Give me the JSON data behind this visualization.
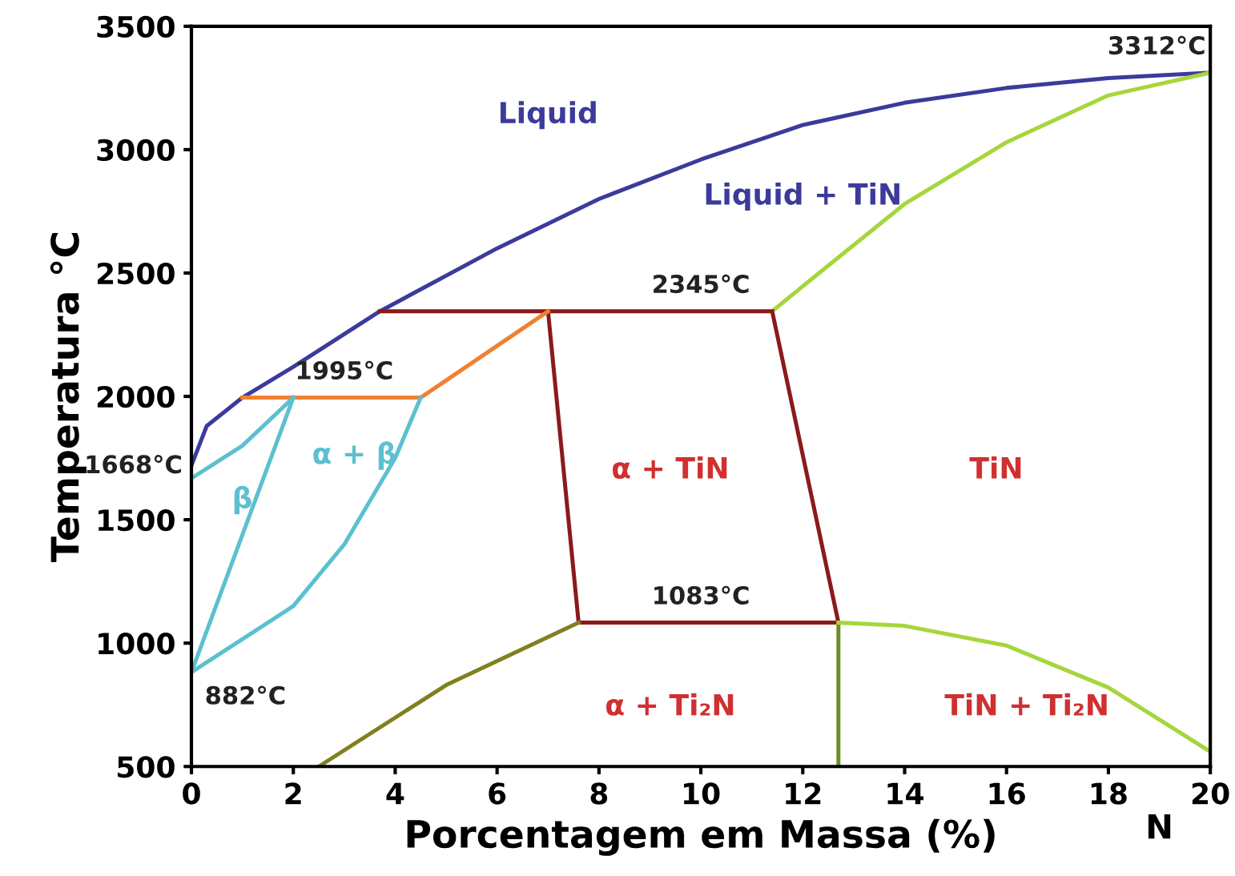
{
  "chart_data": {
    "type": "line",
    "xlabel": "Porcentagem em Massa (%)",
    "ylabel": "Temperatura °C",
    "xlim": [
      0,
      20
    ],
    "ylim": [
      500,
      3500
    ],
    "xticks": [
      0,
      2,
      4,
      6,
      8,
      10,
      12,
      14,
      16,
      18,
      20
    ],
    "yticks": [
      500,
      1000,
      1500,
      2000,
      2500,
      3000,
      3500
    ],
    "grid": false,
    "legend": false,
    "marker": "none",
    "line_style": "solid",
    "series": [
      {
        "color": "#3b3b9b",
        "x": [
          0,
          0.3,
          1,
          2,
          3.7,
          6,
          8,
          10,
          12,
          14,
          16,
          18,
          20
        ],
        "values": [
          1720,
          1880,
          1995,
          2120,
          2345,
          2600,
          2800,
          2960,
          3100,
          3190,
          3250,
          3290,
          3312
        ]
      },
      {
        "color": "#a6d63c",
        "x": [
          11.4,
          12.5,
          14,
          16,
          18,
          20
        ],
        "values": [
          2345,
          2530,
          2780,
          3030,
          3220,
          3312
        ]
      },
      {
        "color": "#8b1a1a",
        "x": [
          3.7,
          11.4,
          12.7,
          7.6,
          7,
          11.4
        ],
        "values": [
          2345,
          2345,
          1083,
          1083,
          2345,
          2345
        ]
      },
      {
        "color": "#f08030",
        "x": [
          1,
          4.5,
          7
        ],
        "values": [
          1995,
          1995,
          2345
        ]
      },
      {
        "color": "#5bc0d0",
        "x": [
          0,
          1,
          2
        ],
        "values": [
          1668,
          1800,
          1995
        ]
      },
      {
        "color": "#5bc0d0",
        "x": [
          0,
          2
        ],
        "values": [
          882,
          1995
        ]
      },
      {
        "color": "#5bc0d0",
        "x": [
          0,
          2,
          3,
          4,
          4.5
        ],
        "values": [
          882,
          1150,
          1400,
          1750,
          1995
        ]
      },
      {
        "color": "#808020",
        "x": [
          2.5,
          5,
          7.6
        ],
        "values": [
          500,
          830,
          1083
        ]
      },
      {
        "color": "#6b8e23",
        "x": [
          12.7,
          12.7
        ],
        "values": [
          1083,
          500
        ]
      },
      {
        "color": "#a6d63c",
        "x": [
          12.7,
          14,
          16,
          18,
          20
        ],
        "values": [
          1083,
          1070,
          990,
          820,
          560
        ]
      }
    ],
    "annotations": [
      {
        "text": "3312°C",
        "x": 20,
        "y": 3312
      },
      "Liquid",
      "Liquid + TiN",
      {
        "text": "2345°C",
        "x": 10,
        "y": 2345
      },
      {
        "text": "1995°C",
        "x": 3,
        "y": 1995
      },
      {
        "text": "1668°C",
        "x": 0,
        "y": 1668
      },
      "β",
      "α + β",
      "α + TiN",
      "TiN",
      {
        "text": "1083°C",
        "x": 10,
        "y": 1083
      },
      {
        "text": "882°C",
        "x": 0,
        "y": 882
      },
      "α + Ti₂N",
      "TiN + Ti₂N",
      "N"
    ]
  }
}
